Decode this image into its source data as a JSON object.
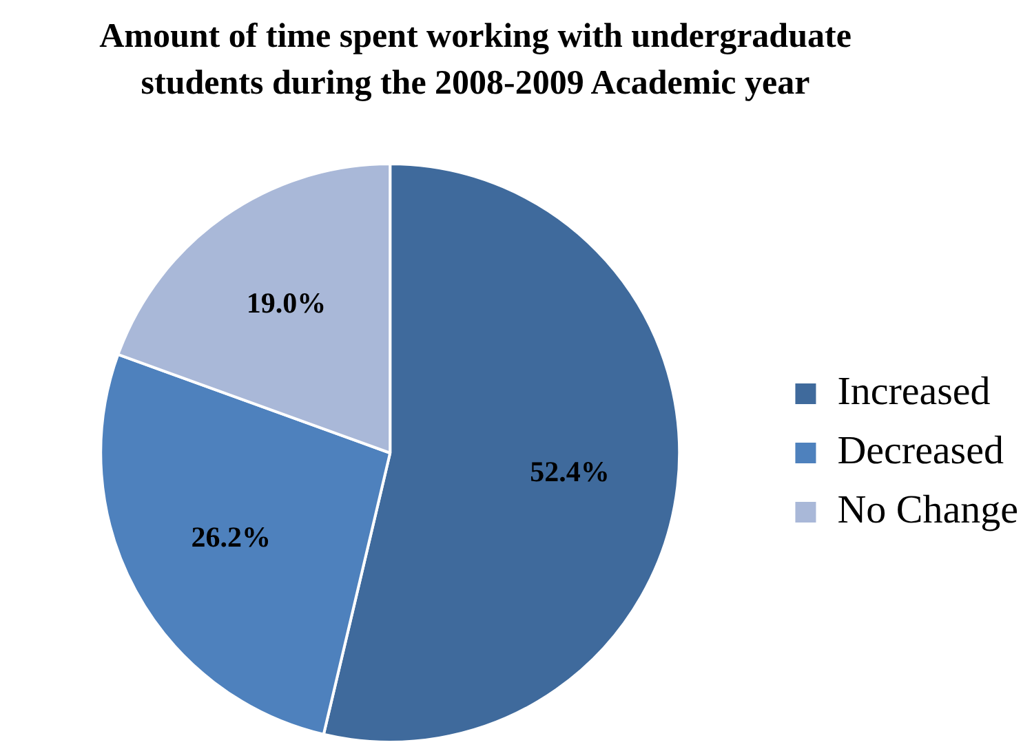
{
  "chart_data": {
    "type": "pie",
    "title": "Amount of time  spent working with undergraduate students during the 2008-2009 Academic year",
    "categories": [
      "Increased",
      "Decreased",
      "No Change"
    ],
    "values": [
      52.4,
      26.2,
      19.0
    ],
    "value_labels": [
      "52.4%",
      "26.2%",
      "19.0%"
    ],
    "colors": [
      "#3f6a9c",
      "#4e81bd",
      "#a9b8d8"
    ],
    "legend": "right"
  }
}
